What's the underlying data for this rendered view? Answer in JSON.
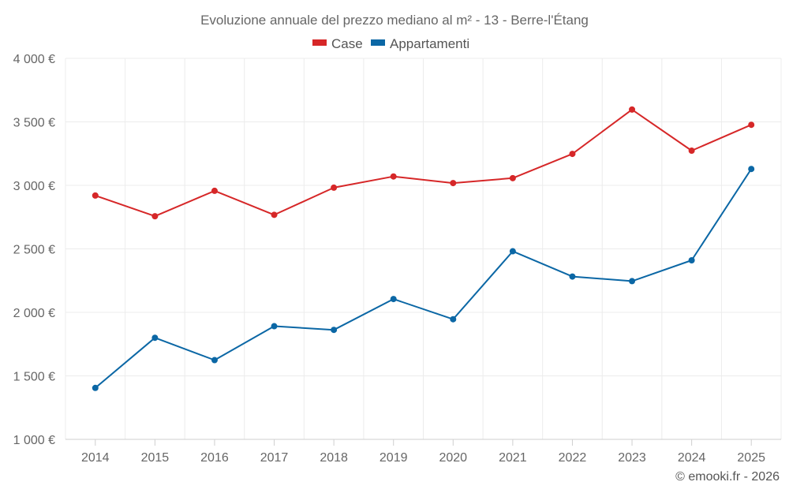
{
  "chart_data": {
    "type": "line",
    "title": "Evoluzione annuale del prezzo mediano al m² - 13 - Berre-l'Étang",
    "categories": [
      "2014",
      "2015",
      "2016",
      "2017",
      "2018",
      "2019",
      "2020",
      "2021",
      "2022",
      "2023",
      "2024",
      "2025"
    ],
    "series": [
      {
        "name": "Case",
        "color": "#d62728",
        "values": [
          2920,
          2757,
          2957,
          2768,
          2982,
          3070,
          3018,
          3057,
          3248,
          3597,
          3273,
          3477
        ]
      },
      {
        "name": "Appartamenti",
        "color": "#0b67a5",
        "values": [
          1405,
          1800,
          1624,
          1891,
          1862,
          2105,
          1946,
          2481,
          2282,
          2246,
          2410,
          3129
        ]
      }
    ],
    "yticks": [
      1000,
      1500,
      2000,
      2500,
      3000,
      3500,
      4000
    ],
    "ytick_labels": [
      "1 000 €",
      "1 500 €",
      "2 000 €",
      "2 500 €",
      "3 000 €",
      "3 500 €",
      "4 000 €"
    ],
    "ylim": [
      1000,
      4000
    ],
    "xlabel": "",
    "ylabel": "",
    "legend_position": "top-center",
    "grid": true
  },
  "credit": "© emooki.fr - 2026"
}
